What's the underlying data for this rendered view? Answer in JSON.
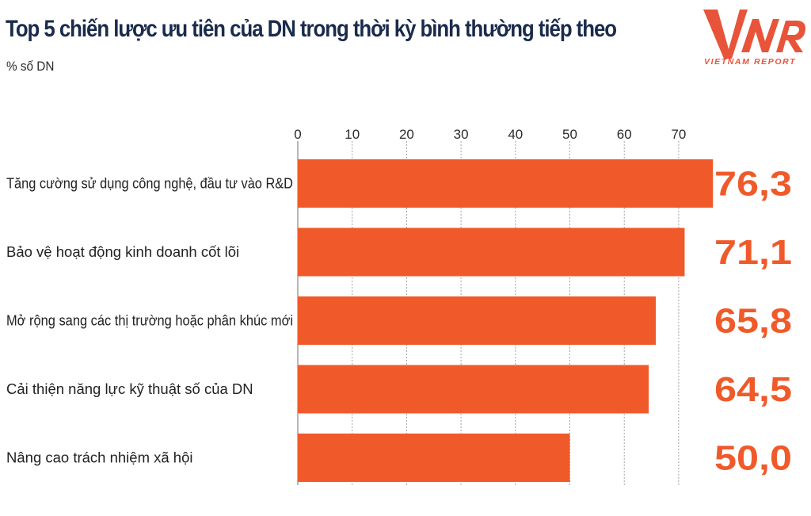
{
  "title": "Top 5 chiến lược ưu tiên của DN trong thời kỳ bình thường tiếp theo",
  "subtitle": "% số DN",
  "logo": {
    "text": "VIETNAM REPORT"
  },
  "colors": {
    "bar": "#f05a2a",
    "value_label": "#f05a2a",
    "title": "#1a2b4c",
    "grid": "#9a9a9a"
  },
  "chart_data": {
    "type": "bar",
    "orientation": "horizontal",
    "categories": [
      "Tăng cường sử dụng công nghệ, đầu tư vào R&D",
      "Bảo vệ hoạt động kinh doanh cốt lõi",
      "Mở rộng sang các thị trường hoặc phân khúc mới",
      "Cải thiện năng lực kỹ thuật số của DN",
      "Nâng cao trách nhiệm xã hội"
    ],
    "values": [
      76.3,
      71.1,
      65.8,
      64.5,
      50.0
    ],
    "value_labels": [
      "76,3",
      "71,1",
      "65,8",
      "64,5",
      "50,0"
    ],
    "xticks": [
      "0",
      "10",
      "20",
      "30",
      "40",
      "50",
      "60",
      "70"
    ],
    "xlim": [
      0,
      76.3
    ],
    "grid": true,
    "axis_position": "top"
  }
}
